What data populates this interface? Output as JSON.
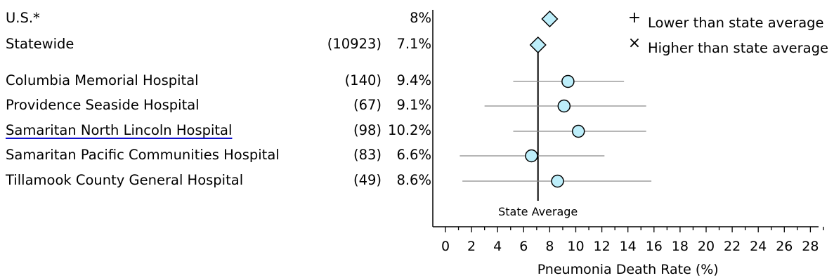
{
  "chart_data": {
    "type": "scatter",
    "rows": [
      {
        "label": "U.S.*",
        "count": "",
        "value_text": "8%",
        "rate": 8.0,
        "ci": null,
        "marker": "diamond",
        "link": false
      },
      {
        "label": "Statewide",
        "count": "(10923)",
        "value_text": "7.1%",
        "rate": 7.1,
        "ci": null,
        "marker": "diamond",
        "link": false
      },
      {
        "label": "Columbia Memorial Hospital",
        "count": "(140)",
        "value_text": "9.4%",
        "rate": 9.4,
        "ci": [
          5.2,
          13.7
        ],
        "marker": "circle",
        "link": false
      },
      {
        "label": "Providence Seaside Hospital",
        "count": "(67)",
        "value_text": "9.1%",
        "rate": 9.1,
        "ci": [
          3.0,
          15.4
        ],
        "marker": "circle",
        "link": false
      },
      {
        "label": "Samaritan North Lincoln Hospital",
        "count": "(98)",
        "value_text": "10.2%",
        "rate": 10.2,
        "ci": [
          5.2,
          15.4
        ],
        "marker": "circle",
        "link": true
      },
      {
        "label": "Samaritan Pacific Communities Hospital",
        "count": "(83)",
        "value_text": "6.6%",
        "rate": 6.6,
        "ci": [
          1.1,
          12.2
        ],
        "marker": "circle",
        "link": false
      },
      {
        "label": "Tillamook County General Hospital",
        "count": "(49)",
        "value_text": "8.6%",
        "rate": 8.6,
        "ci": [
          1.3,
          15.8
        ],
        "marker": "circle",
        "link": false
      }
    ],
    "state_average": 7.1,
    "state_average_label": "State Average",
    "xlabel": "Pneumonia Death Rate (%)",
    "xlim": [
      0,
      29
    ],
    "xticks": [
      0,
      2,
      4,
      6,
      8,
      10,
      12,
      14,
      16,
      18,
      20,
      22,
      24,
      26,
      28
    ],
    "legend": {
      "position": "top-right",
      "items": [
        {
          "symbol": "+",
          "text": "Lower than state average"
        },
        {
          "symbol": "×",
          "text": "Higher than state average"
        }
      ]
    },
    "colors": {
      "marker_fill": "#bdeefa",
      "marker_stroke": "#000000",
      "ci_line": "#8a8a8a",
      "link_underline": "#1010d0"
    }
  }
}
